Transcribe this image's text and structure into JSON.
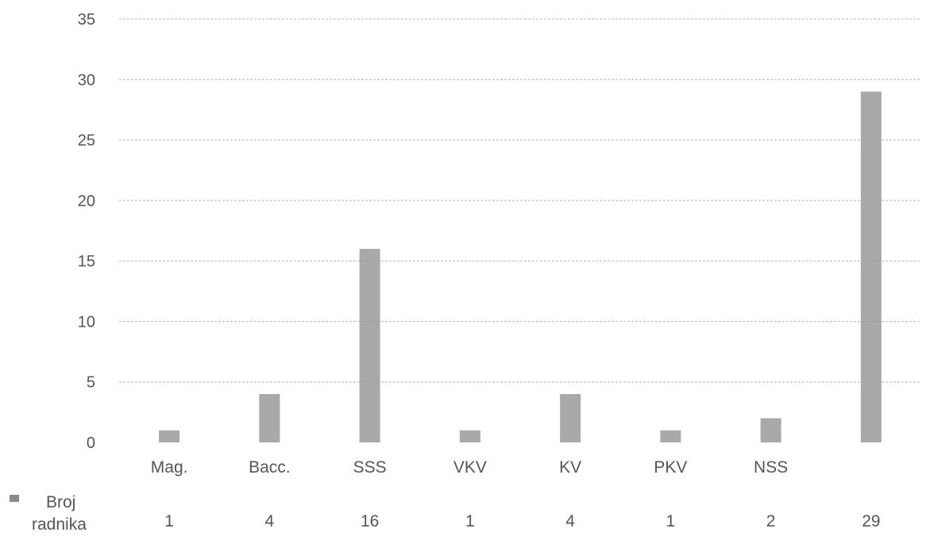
{
  "chart_data": {
    "type": "bar",
    "categories": [
      "Mag.",
      "Bacc.",
      "SSS",
      "VKV",
      "KV",
      "PKV",
      "NSS",
      ""
    ],
    "series": [
      {
        "name": "Broj radnika",
        "values": [
          1,
          4,
          16,
          1,
          4,
          1,
          2,
          29
        ]
      }
    ],
    "legend_lines": [
      "Broj",
      "radnika"
    ],
    "data_labels": [
      "1",
      "4",
      "16",
      "1",
      "4",
      "1",
      "2",
      "29"
    ],
    "yticks": [
      0,
      5,
      10,
      15,
      20,
      25,
      30,
      35
    ],
    "ylim": [
      0,
      35
    ],
    "grid": true,
    "legend_position": "bottom-left",
    "bar_color": "#9a9a9a",
    "title": "",
    "xlabel": "",
    "ylabel": ""
  }
}
